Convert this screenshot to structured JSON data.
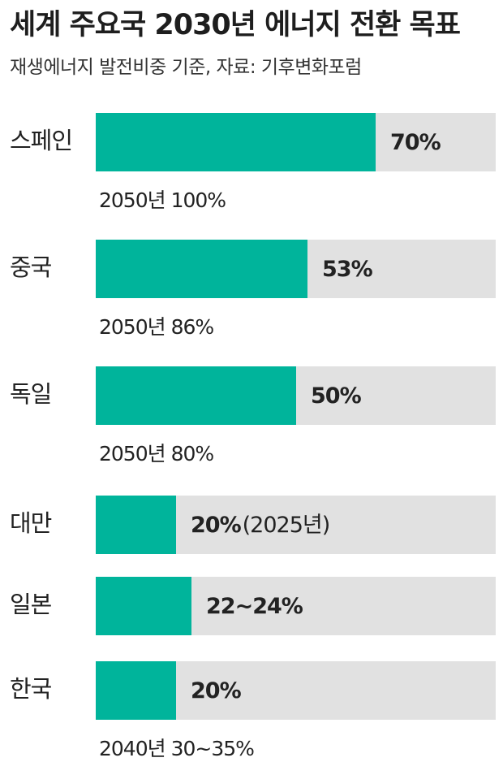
{
  "chart_data": {
    "type": "bar",
    "orientation": "horizontal",
    "title": "세계 주요국 2030년 에너지 전환 목표",
    "subtitle": "재생에너지 발전비중 기준, 자료: 기후변화포럼",
    "xlim": [
      0,
      100
    ],
    "categories": [
      "스페인",
      "중국",
      "독일",
      "대만",
      "일본",
      "한국"
    ],
    "values": [
      70,
      53,
      50,
      20,
      24,
      20
    ],
    "value_labels": [
      "70%",
      "53%",
      "50%",
      "20%",
      "22~24%",
      "20%"
    ],
    "value_label_extras": [
      "",
      "",
      "",
      "(2025년)",
      "",
      ""
    ],
    "notes": [
      "2050년 100%",
      "2050년 86%",
      "2050년 80%",
      "",
      "",
      "2040년 30~35%"
    ],
    "colors": {
      "bar": "#00b49b",
      "track": "#e1e1e1"
    }
  }
}
